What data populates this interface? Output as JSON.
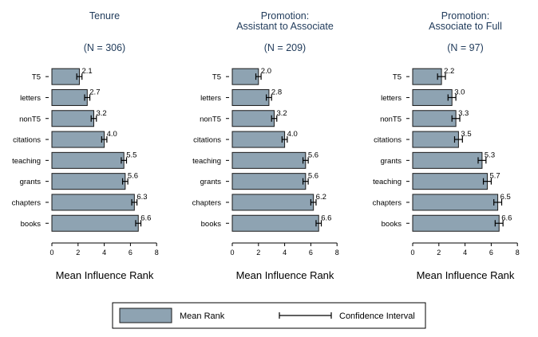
{
  "colors": {
    "bar_fill": "#8ea3b2",
    "bar_stroke": "#1a1a1a",
    "title_text": "#1f3a5a",
    "text": "#000000"
  },
  "legend": {
    "bar_label": "Mean Rank",
    "ci_label": "Confidence Interval"
  },
  "chart_data": [
    {
      "type": "bar",
      "orientation": "horizontal",
      "title": "Tenure",
      "subtitle": "(N = 306)",
      "xlabel": "Mean Influence Rank",
      "xlim": [
        0,
        8
      ],
      "xticks": [
        0,
        2,
        4,
        6,
        8
      ],
      "categories": [
        "T5",
        "letters",
        "nonT5",
        "citations",
        "teaching",
        "grants",
        "chapters",
        "books"
      ],
      "values": [
        2.1,
        2.7,
        3.2,
        4.0,
        5.5,
        5.6,
        6.3,
        6.6
      ],
      "labels": [
        "2.1",
        "2.7",
        "3.2",
        "4.0",
        "5.5",
        "5.6",
        "6.3",
        "6.6"
      ],
      "ci": [
        [
          1.9,
          2.3
        ],
        [
          2.5,
          2.9
        ],
        [
          3.0,
          3.4
        ],
        [
          3.8,
          4.2
        ],
        [
          5.3,
          5.7
        ],
        [
          5.4,
          5.8
        ],
        [
          6.1,
          6.5
        ],
        [
          6.4,
          6.8
        ]
      ]
    },
    {
      "type": "bar",
      "orientation": "horizontal",
      "title": "Promotion:",
      "title2": "Assistant to Associate",
      "subtitle": "(N = 209)",
      "xlabel": "Mean Influence Rank",
      "xlim": [
        0,
        8
      ],
      "xticks": [
        0,
        2,
        4,
        6,
        8
      ],
      "categories": [
        "T5",
        "letters",
        "nonT5",
        "citations",
        "teaching",
        "grants",
        "chapters",
        "books"
      ],
      "values": [
        2.0,
        2.8,
        3.2,
        4.0,
        5.6,
        5.6,
        6.2,
        6.6
      ],
      "labels": [
        "2.0",
        "2.8",
        "3.2",
        "4.0",
        "5.6",
        "5.6",
        "6.2",
        "6.6"
      ],
      "ci": [
        [
          1.8,
          2.2
        ],
        [
          2.6,
          3.0
        ],
        [
          3.0,
          3.4
        ],
        [
          3.8,
          4.2
        ],
        [
          5.4,
          5.8
        ],
        [
          5.4,
          5.8
        ],
        [
          6.0,
          6.4
        ],
        [
          6.4,
          6.8
        ]
      ]
    },
    {
      "type": "bar",
      "orientation": "horizontal",
      "title": "Promotion:",
      "title2": "Associate to Full",
      "subtitle": "(N = 97)",
      "xlabel": "Mean Influence Rank",
      "xlim": [
        0,
        8
      ],
      "xticks": [
        0,
        2,
        4,
        6,
        8
      ],
      "categories": [
        "T5",
        "letters",
        "nonT5",
        "citations",
        "grants",
        "teaching",
        "chapters",
        "books"
      ],
      "values": [
        2.2,
        3.0,
        3.3,
        3.5,
        5.3,
        5.7,
        6.5,
        6.6
      ],
      "labels": [
        "2.2",
        "3.0",
        "3.3",
        "3.5",
        "5.3",
        "5.7",
        "6.5",
        "6.6"
      ],
      "ci": [
        [
          1.9,
          2.5
        ],
        [
          2.7,
          3.3
        ],
        [
          3.0,
          3.6
        ],
        [
          3.2,
          3.8
        ],
        [
          5.0,
          5.6
        ],
        [
          5.4,
          6.0
        ],
        [
          6.2,
          6.8
        ],
        [
          6.3,
          6.9
        ]
      ]
    }
  ]
}
